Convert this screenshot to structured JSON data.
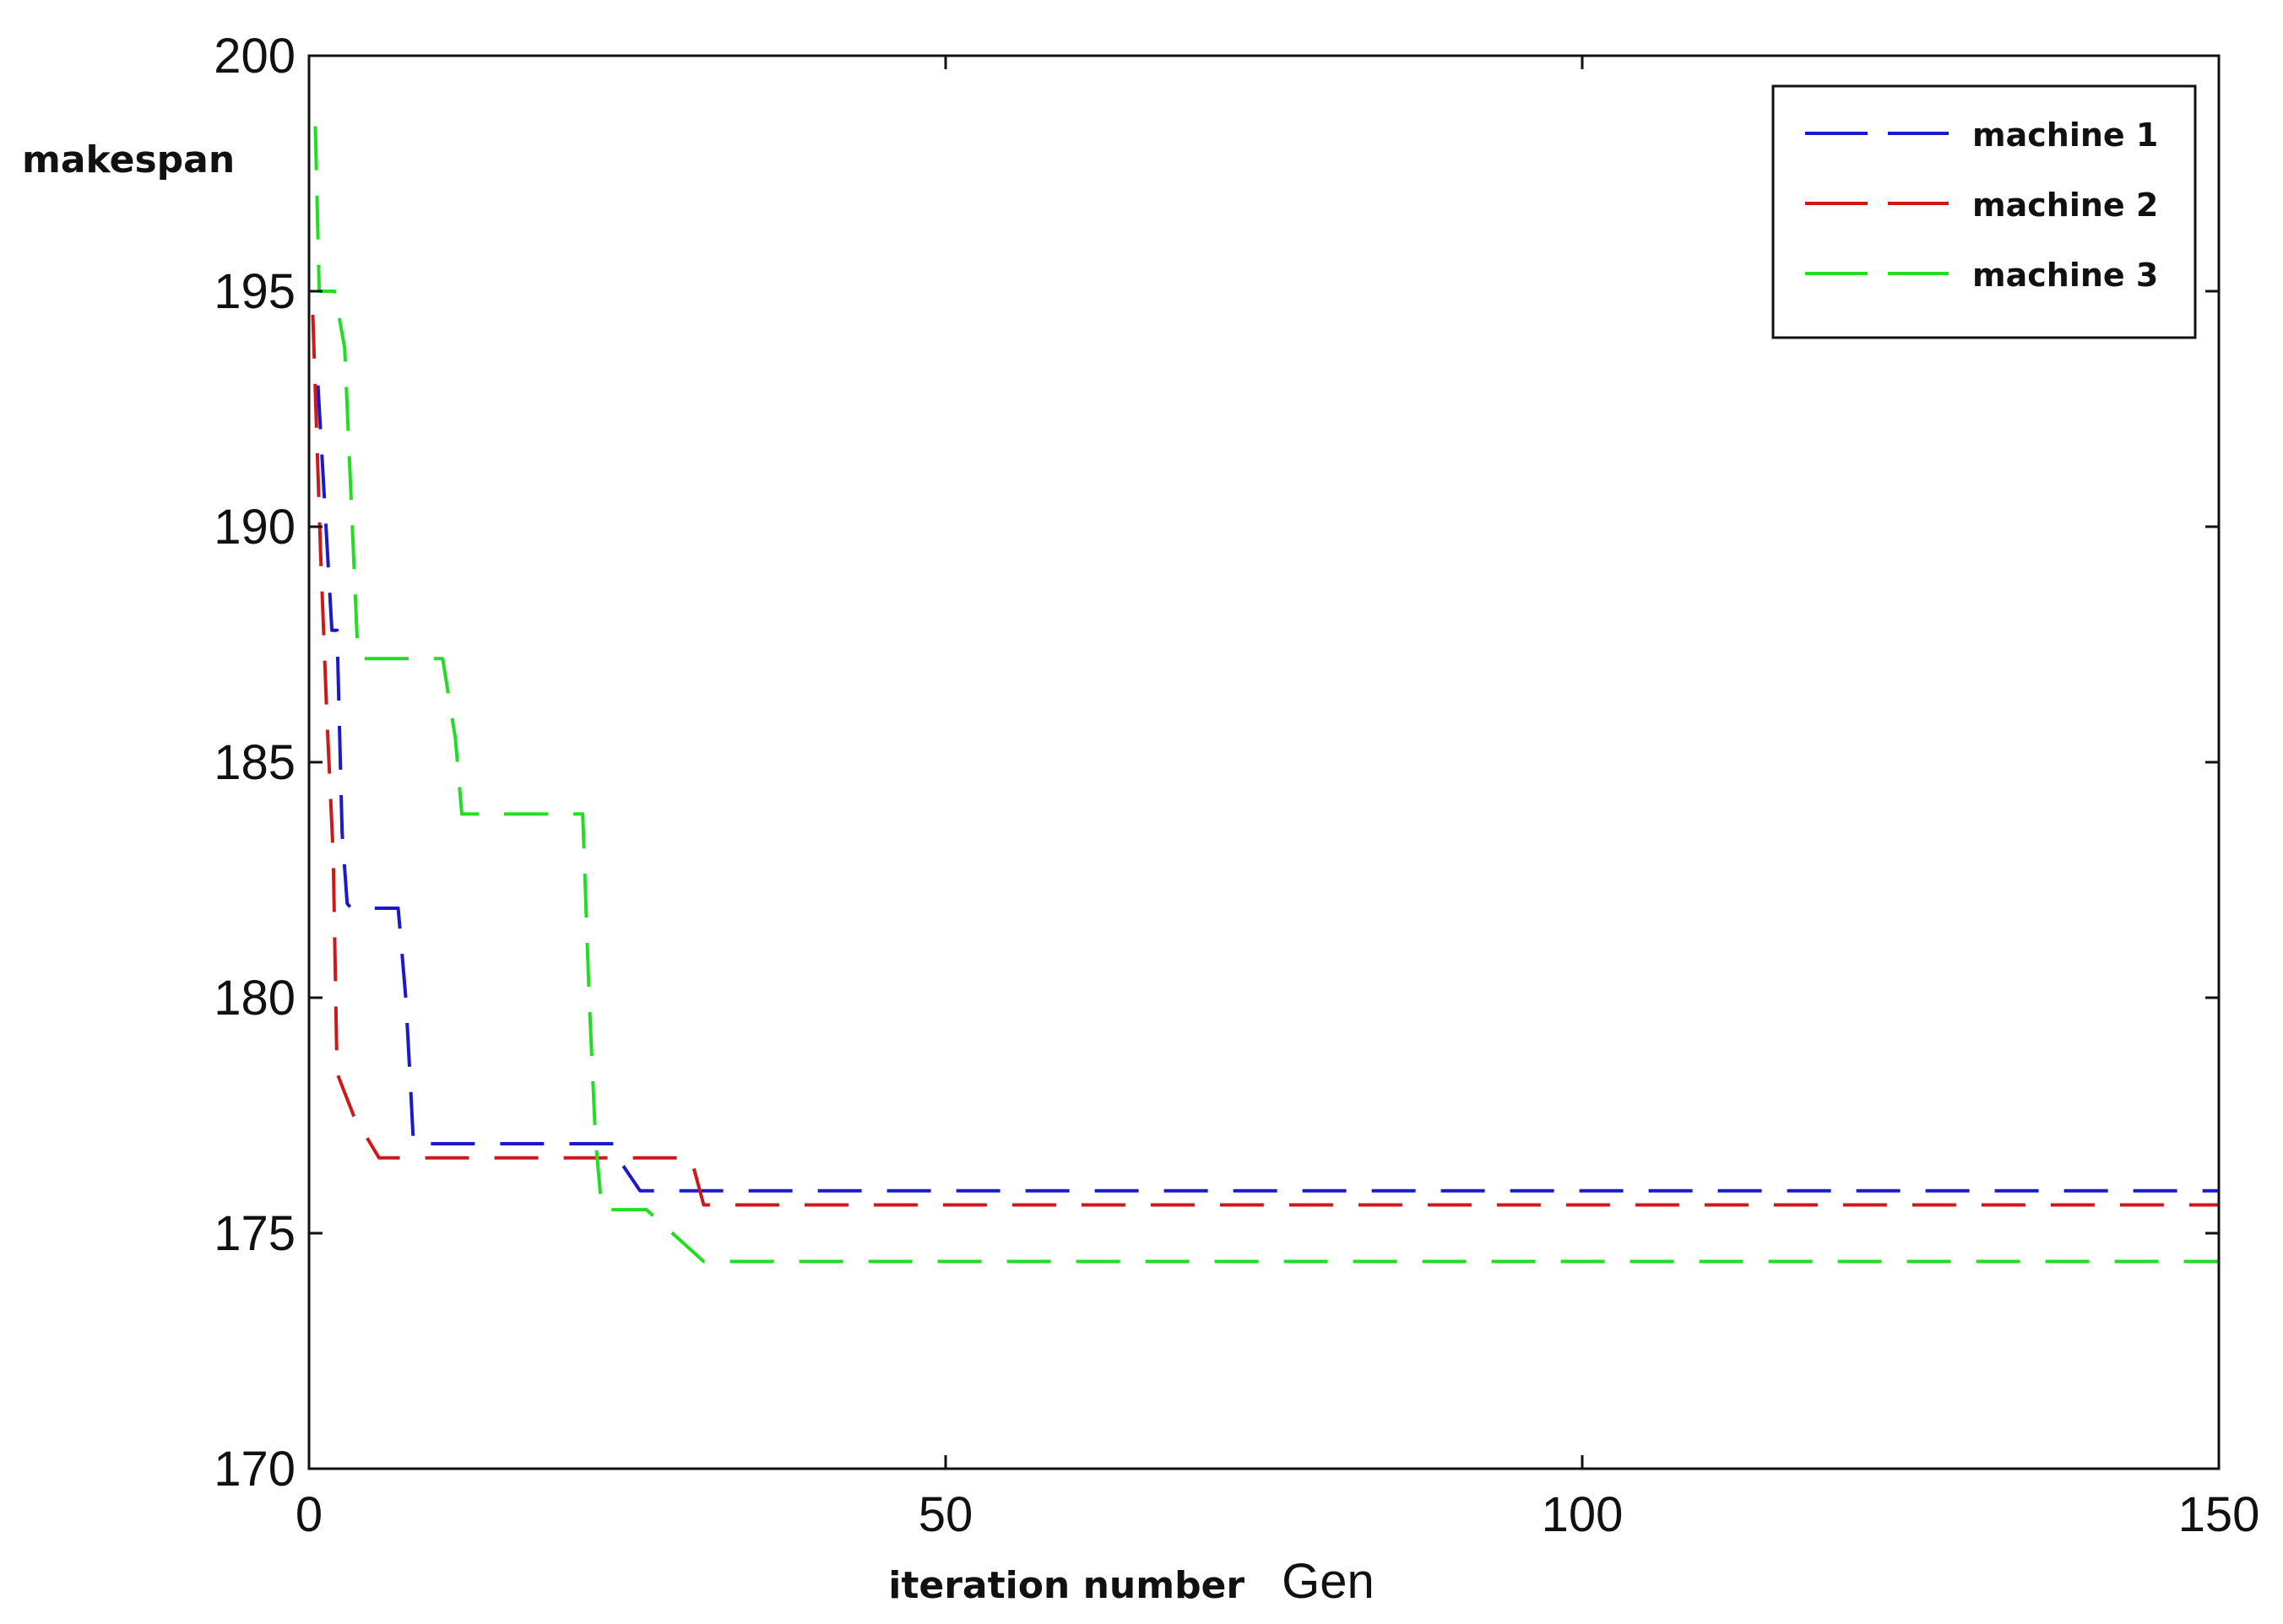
{
  "chart_data": {
    "type": "line",
    "xlabel": "iteration number",
    "xlabel_unit": "Gen",
    "ylabel": "makespan",
    "xlim": [
      0,
      150
    ],
    "ylim": [
      170,
      200
    ],
    "xticks": [
      0,
      50,
      100,
      150
    ],
    "yticks": [
      170,
      175,
      180,
      185,
      190,
      195,
      200
    ],
    "grid": false,
    "legend_position": "top-right",
    "series": [
      {
        "name": "machine 1",
        "color": "#1a1acc",
        "dash": "dashed",
        "x": [
          0.7,
          1.8,
          2.2,
          2.6,
          3.0,
          3.3,
          7.0,
          7.6,
          8.0,
          8.2,
          24.0,
          24.5,
          26.0,
          150
        ],
        "y": [
          193.0,
          187.8,
          187.8,
          183.5,
          182.0,
          181.9,
          181.9,
          180.0,
          178.0,
          176.9,
          176.9,
          176.5,
          175.9,
          175.9
        ]
      },
      {
        "name": "machine 2",
        "color": "#cc1a1a",
        "dash": "dashed",
        "x": [
          0.3,
          0.9,
          1.4,
          1.9,
          2.2,
          3.5,
          5.5,
          30.0,
          31.0,
          150
        ],
        "y": [
          194.5,
          189.5,
          186.0,
          183.0,
          178.4,
          177.5,
          176.6,
          176.6,
          175.6,
          175.6
        ]
      },
      {
        "name": "machine 3",
        "color": "#22dd22",
        "dash": "dashed",
        "x": [
          0.5,
          0.8,
          2.0,
          2.8,
          3.8,
          4.0,
          10.5,
          11.5,
          12.0,
          21.5,
          22.0,
          22.5,
          23.0,
          26.5,
          31.0,
          150
        ],
        "y": [
          198.5,
          195.0,
          195.0,
          193.8,
          187.5,
          187.2,
          187.2,
          185.5,
          183.9,
          183.9,
          180.0,
          177.0,
          175.5,
          175.5,
          174.4,
          174.4
        ]
      }
    ]
  }
}
